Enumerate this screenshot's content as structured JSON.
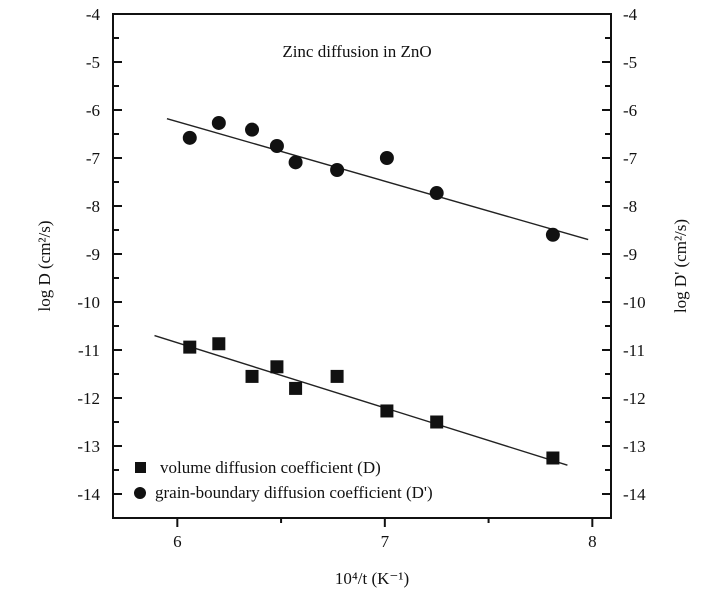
{
  "chart_data": {
    "type": "scatter",
    "title": "Zinc diffusion in ZnO",
    "xlabel": "10⁴/t (K⁻¹)",
    "ylabel": "log D (cm²/s)",
    "ylabel_right": "log D' (cm²/s)",
    "xlim": [
      5.69,
      8.09
    ],
    "ylim": [
      -14.5,
      -4
    ],
    "xticks": [
      6,
      7,
      8
    ],
    "yticks": [
      -4,
      -5,
      -6,
      -7,
      -8,
      -9,
      -10,
      -11,
      -12,
      -13,
      -14
    ],
    "legend_position": "bottom-left",
    "grid": false,
    "series": [
      {
        "name": "volume diffusion coefficient (D)",
        "marker": "square",
        "x": [
          6.06,
          6.2,
          6.36,
          6.48,
          6.57,
          6.77,
          7.01,
          7.25,
          7.81
        ],
        "y": [
          -10.94,
          -10.87,
          -11.55,
          -11.35,
          -11.8,
          -11.55,
          -12.27,
          -12.5,
          -13.25
        ],
        "fit": [
          [
            5.89,
            -10.7
          ],
          [
            7.88,
            -13.4
          ]
        ]
      },
      {
        "name": "grain-boundary diffusion coefficient (D')",
        "marker": "circle",
        "x": [
          6.06,
          6.2,
          6.36,
          6.48,
          6.57,
          6.77,
          7.01,
          7.25,
          7.81
        ],
        "y": [
          -6.58,
          -6.27,
          -6.41,
          -6.75,
          -7.09,
          -7.25,
          -7.0,
          -7.73,
          -8.6
        ],
        "fit": [
          [
            5.95,
            -6.18
          ],
          [
            7.98,
            -8.7
          ]
        ]
      }
    ]
  }
}
